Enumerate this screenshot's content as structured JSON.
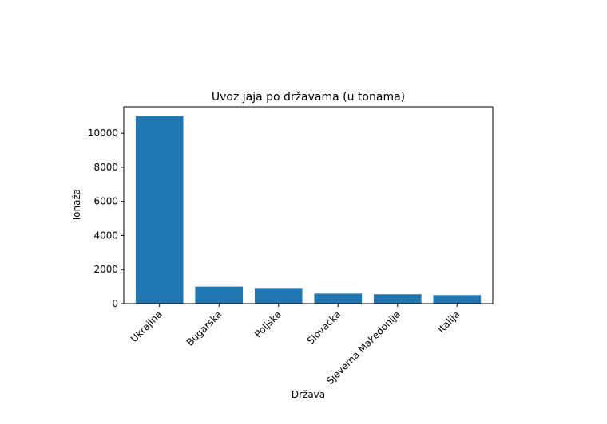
{
  "chart_data": {
    "type": "bar",
    "title": "Uvoz jaja po državama (u tonama)",
    "xlabel": "Država",
    "ylabel": "Tonaža",
    "categories": [
      "Ukrajina",
      "Bugarska",
      "Poljska",
      "Slovačka",
      "Sjeverna Makedonija",
      "Italija"
    ],
    "values": [
      11000,
      1000,
      920,
      590,
      550,
      500
    ],
    "ylim": [
      0,
      11550
    ],
    "yticks": [
      0,
      2000,
      4000,
      6000,
      8000,
      10000
    ],
    "bar_color": "#1f77b4",
    "grid": false,
    "legend": "none"
  }
}
